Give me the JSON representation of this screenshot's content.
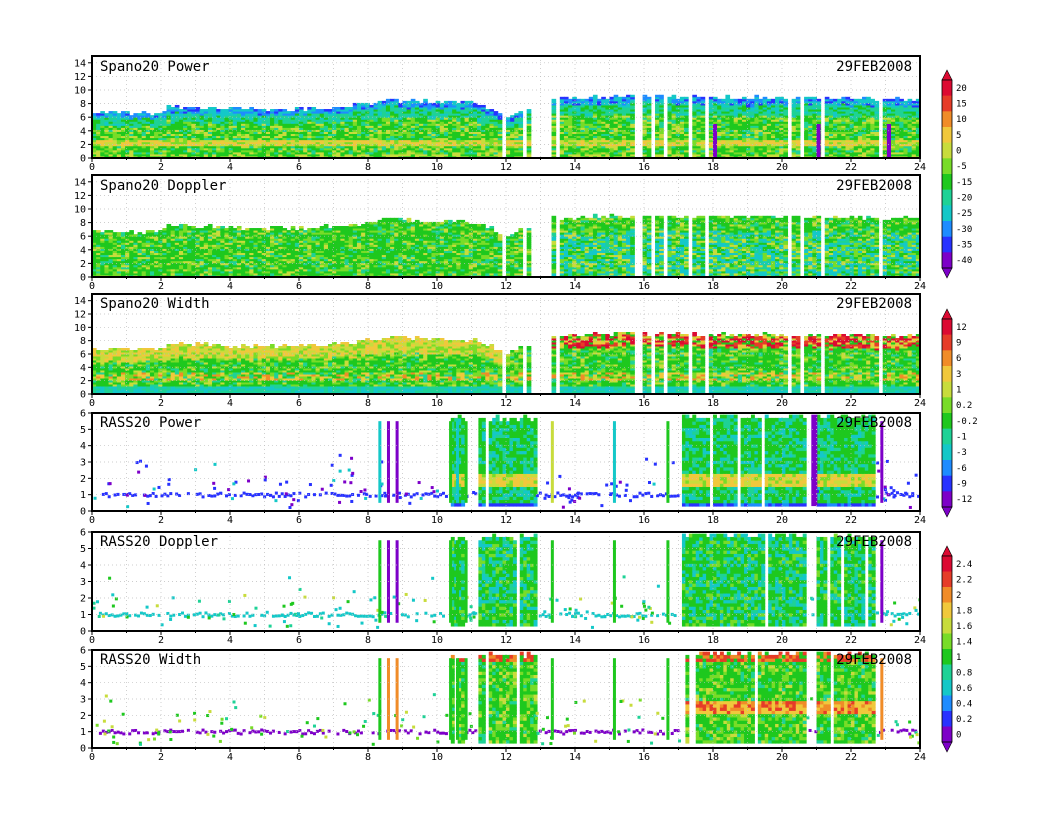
{
  "colors": {
    "palette": [
      "#7d00c8",
      "#2832ff",
      "#1e8cff",
      "#14c8c8",
      "#1ed296",
      "#1ec81e",
      "#78dc28",
      "#c8dc3c",
      "#f0c83c",
      "#f08c28",
      "#e63c28",
      "#dc0a32"
    ],
    "bad": "#ffffff",
    "frame": "#000000",
    "grid": "#bdbdbd"
  },
  "chart_data": [
    {
      "type": "heatmap",
      "title": "Spano20  Power",
      "date": "29FEB2008",
      "x_range": [
        0,
        24
      ],
      "x_ticks": [
        "0",
        "2",
        "4",
        "6",
        "8",
        "10",
        "12",
        "14",
        "16",
        "18",
        "20",
        "22",
        "24"
      ],
      "y_range": [
        0,
        15
      ],
      "y_ticks": [
        "0",
        "2",
        "4",
        "6",
        "8",
        "10",
        "12",
        "14"
      ],
      "colorbar": [
        "20",
        "15",
        "10",
        "5",
        "0",
        "-5",
        "-15",
        "-20",
        "-25",
        "-30",
        "-35",
        "-40"
      ],
      "top_of_data_km": [
        [
          0,
          6.5
        ],
        [
          2,
          6.5
        ],
        [
          2.1,
          7.5
        ],
        [
          3.5,
          7.2
        ],
        [
          5,
          7.0
        ],
        [
          7,
          7.3
        ],
        [
          8.7,
          8.4
        ],
        [
          11,
          8.0
        ],
        [
          12,
          6.0
        ],
        [
          13.2,
          8.5
        ],
        [
          15.7,
          9.0
        ],
        [
          17.5,
          8.8
        ],
        [
          24,
          8.6
        ]
      ],
      "data_gaps_hours": [
        [
          11.4,
          11.5
        ],
        [
          11.8,
          11.95
        ],
        [
          12.4,
          12.5
        ],
        [
          12.65,
          13.25
        ],
        [
          13.35,
          13.45
        ],
        [
          15.7,
          15.95
        ],
        [
          16.15,
          16.25
        ],
        [
          16.5,
          16.6
        ],
        [
          17.2,
          17.3
        ],
        [
          17.75,
          17.85
        ],
        [
          18.25,
          18.35
        ],
        [
          19.6,
          19.65
        ],
        [
          20.1,
          20.2
        ],
        [
          20.45,
          20.55
        ],
        [
          20.8,
          20.85
        ],
        [
          21.1,
          21.2
        ],
        [
          22.8,
          22.9
        ]
      ],
      "dominant_values": "-15 to -5 (green) through bulk, yellow 0-5 layer at 1.5-3 km, blue -30 to -35 near top"
    },
    {
      "type": "heatmap",
      "title": "Spano20  Doppler",
      "date": "29FEB2008",
      "x_range": [
        0,
        24
      ],
      "x_ticks": [
        "0",
        "2",
        "4",
        "6",
        "8",
        "10",
        "12",
        "14",
        "16",
        "18",
        "20",
        "22",
        "24"
      ],
      "y_range": [
        0,
        15
      ],
      "y_ticks": [
        "0",
        "2",
        "4",
        "6",
        "8",
        "10",
        "12",
        "14"
      ],
      "top_of_data_km": [
        [
          0,
          6.5
        ],
        [
          2,
          6.5
        ],
        [
          2.1,
          7.5
        ],
        [
          3.5,
          7.2
        ],
        [
          5,
          7.0
        ],
        [
          7,
          7.3
        ],
        [
          8.7,
          8.4
        ],
        [
          11,
          8.0
        ],
        [
          12,
          6.0
        ],
        [
          13.2,
          8.5
        ],
        [
          15.7,
          9.0
        ],
        [
          17.5,
          8.8
        ],
        [
          24,
          8.6
        ]
      ],
      "data_gaps_hours": [
        [
          11.4,
          11.5
        ],
        [
          11.8,
          11.95
        ],
        [
          12.4,
          12.5
        ],
        [
          12.65,
          13.25
        ],
        [
          13.35,
          13.45
        ],
        [
          15.7,
          15.95
        ],
        [
          16.15,
          16.25
        ],
        [
          16.5,
          16.6
        ],
        [
          17.2,
          17.3
        ],
        [
          17.75,
          17.85
        ],
        [
          18.25,
          18.35
        ],
        [
          19.6,
          19.65
        ],
        [
          20.1,
          20.2
        ],
        [
          20.45,
          20.55
        ],
        [
          20.8,
          20.85
        ],
        [
          21.1,
          21.2
        ],
        [
          22.8,
          22.9
        ]
      ],
      "dominant_values": "green with cyan patches"
    },
    {
      "type": "heatmap",
      "title": "Spano20  Width",
      "date": "29FEB2008",
      "x_range": [
        0,
        24
      ],
      "x_ticks": [
        "0",
        "2",
        "4",
        "6",
        "8",
        "10",
        "12",
        "14",
        "16",
        "18",
        "20",
        "22",
        "24"
      ],
      "y_range": [
        0,
        15
      ],
      "y_ticks": [
        "0",
        "2",
        "4",
        "6",
        "8",
        "10",
        "12",
        "14"
      ],
      "colorbar": [
        "12",
        "9",
        "6",
        "3",
        "1",
        "0.2",
        "-0.2",
        "-1",
        "-3",
        "-6",
        "-9",
        "-12"
      ],
      "top_of_data_km": [
        [
          0,
          6.5
        ],
        [
          2,
          6.5
        ],
        [
          2.1,
          7.5
        ],
        [
          3.5,
          7.2
        ],
        [
          5,
          7.0
        ],
        [
          7,
          7.3
        ],
        [
          8.7,
          8.4
        ],
        [
          11,
          8.0
        ],
        [
          12,
          6.0
        ],
        [
          13.2,
          8.5
        ],
        [
          15.7,
          9.0
        ],
        [
          17.5,
          8.8
        ],
        [
          24,
          8.6
        ]
      ],
      "data_gaps_hours": [
        [
          11.4,
          11.5
        ],
        [
          11.8,
          11.95
        ],
        [
          12.4,
          12.5
        ],
        [
          12.65,
          13.25
        ],
        [
          13.35,
          13.45
        ],
        [
          15.7,
          15.95
        ],
        [
          16.15,
          16.25
        ],
        [
          16.5,
          16.6
        ],
        [
          17.2,
          17.3
        ],
        [
          17.75,
          17.85
        ],
        [
          18.25,
          18.35
        ],
        [
          19.6,
          19.65
        ],
        [
          20.1,
          20.2
        ],
        [
          20.45,
          20.55
        ],
        [
          20.8,
          20.85
        ],
        [
          21.1,
          21.2
        ],
        [
          22.8,
          22.9
        ]
      ],
      "dominant_values": "green with yellow/orange/red mottling above 6 km after 13 h"
    },
    {
      "type": "heatmap",
      "title": "RASS20  Power",
      "date": "29FEB2008",
      "x_range": [
        0,
        24
      ],
      "x_ticks": [
        "0",
        "2",
        "4",
        "6",
        "8",
        "10",
        "12",
        "14",
        "16",
        "18",
        "20",
        "22",
        "24"
      ],
      "y_range": [
        0,
        6
      ],
      "y_ticks": [
        "0",
        "1",
        "2",
        "3",
        "4",
        "5",
        "6"
      ],
      "filled_periods_hours": [
        [
          10.3,
          10.75
        ],
        [
          11.1,
          12.8
        ],
        [
          17.0,
          20.7
        ],
        [
          21.0,
          22.7
        ]
      ],
      "dominant_values": "blue low-level band near 1 km, green filled periods with yellow band 1.5-2 km"
    },
    {
      "type": "heatmap",
      "title": "RASS20  Doppler",
      "date": "29FEB2008",
      "x_range": [
        0,
        24
      ],
      "x_ticks": [
        "0",
        "2",
        "4",
        "6",
        "8",
        "10",
        "12",
        "14",
        "16",
        "18",
        "20",
        "22",
        "24"
      ],
      "y_range": [
        0,
        6
      ],
      "y_ticks": [
        "0",
        "1",
        "2",
        "3",
        "4",
        "5",
        "6"
      ],
      "colorbar": [
        "2.4",
        "2.2",
        "2",
        "1.8",
        "1.6",
        "1.4",
        "1",
        "0.8",
        "0.6",
        "0.4",
        "0.2",
        "0"
      ],
      "filled_periods_hours": [
        [
          10.3,
          10.75
        ],
        [
          11.1,
          12.8
        ],
        [
          17.0,
          20.7
        ],
        [
          21.0,
          22.7
        ]
      ],
      "dominant_values": "cyan band near 1 km, green filled periods"
    },
    {
      "type": "heatmap",
      "title": "RASS20  Width",
      "date": "29FEB2008",
      "x_range": [
        0,
        24
      ],
      "x_ticks": [
        "0",
        "2",
        "4",
        "6",
        "8",
        "10",
        "12",
        "14",
        "16",
        "18",
        "20",
        "22",
        "24"
      ],
      "y_range": [
        0,
        6
      ],
      "y_ticks": [
        "0",
        "1",
        "2",
        "3",
        "4",
        "5",
        "6"
      ],
      "filled_periods_hours": [
        [
          10.3,
          10.75
        ],
        [
          11.1,
          12.8
        ],
        [
          17.0,
          20.7
        ],
        [
          21.0,
          22.7
        ]
      ],
      "dominant_values": "purple band near 1 km, green filled periods, yellow/red mottling 17-23 h"
    }
  ]
}
